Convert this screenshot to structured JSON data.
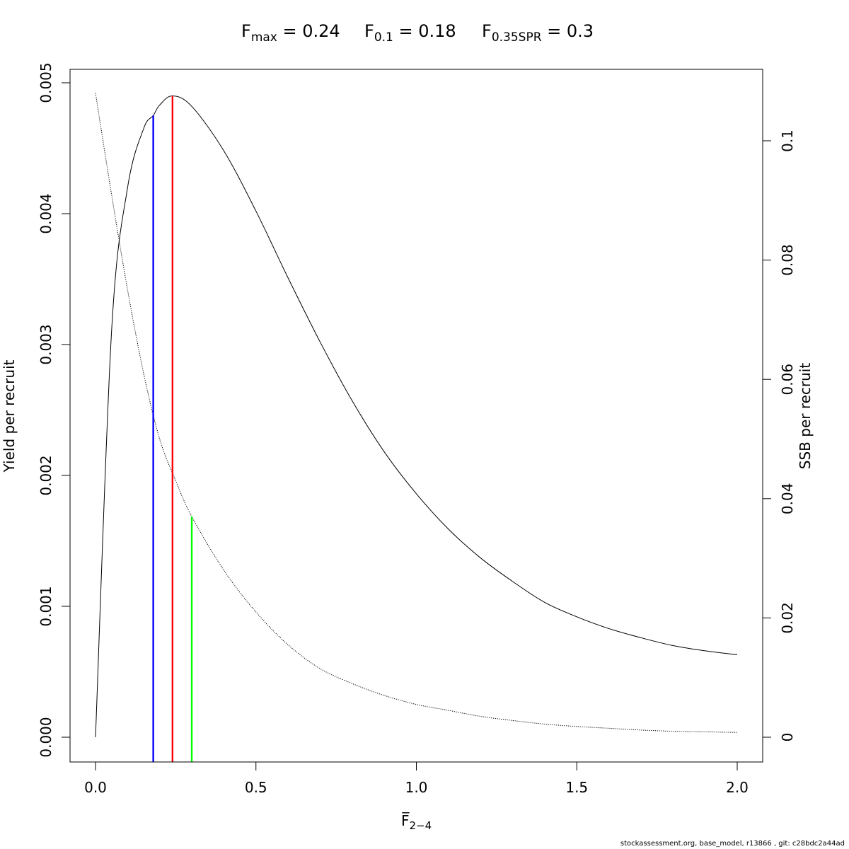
{
  "title": {
    "fmax": {
      "sym": "F",
      "sub": "max",
      "rest": " = 0.24"
    },
    "f01": {
      "sym": "F",
      "sub": "0.1",
      "rest": " = 0.18"
    },
    "fspr": {
      "sym": "F",
      "sub": "0.35SPR",
      "rest": " = 0.3"
    }
  },
  "footer": "stockassessment.org, base_model, r13866 , git: c28bdc2a44ad",
  "chart_data": {
    "type": "line",
    "xlabel": "F̅",
    "xlabel_sub": "2−4",
    "ylabel_left": "Yield per recruit",
    "ylabel_right": "SSB per recruit",
    "xlim": [
      0,
      2
    ],
    "ylim_left": [
      0,
      0.005
    ],
    "ylim_right": [
      0,
      0.11
    ],
    "x_ticks": [
      "0.0",
      "0.5",
      "1.0",
      "1.5",
      "2.0"
    ],
    "y_left_ticks": [
      "0.000",
      "0.001",
      "0.002",
      "0.003",
      "0.004",
      "0.005"
    ],
    "y_right_ticks": [
      "0",
      "0.02",
      "0.04",
      "0.06",
      "0.08",
      "0.1"
    ],
    "series": [
      {
        "axis": "left",
        "style": "solid",
        "x": [
          0,
          0.05,
          0.1,
          0.15,
          0.18,
          0.2,
          0.24,
          0.3,
          0.4,
          0.5,
          0.6,
          0.7,
          0.8,
          0.9,
          1.0,
          1.1,
          1.2,
          1.3,
          1.4,
          1.5,
          1.6,
          1.7,
          1.8,
          1.9,
          2.0
        ],
        "y": [
          0.0,
          0.0031,
          0.0042,
          0.00465,
          0.00475,
          0.00483,
          0.0049,
          0.00482,
          0.00448,
          0.00402,
          0.00351,
          0.00302,
          0.00257,
          0.00218,
          0.00186,
          0.00159,
          0.00137,
          0.00119,
          0.00103,
          0.00092,
          0.00083,
          0.00076,
          0.0007,
          0.00066,
          0.00063
        ]
      },
      {
        "axis": "right",
        "style": "dotted",
        "x": [
          0,
          0.05,
          0.1,
          0.15,
          0.2,
          0.25,
          0.3,
          0.4,
          0.5,
          0.6,
          0.7,
          0.8,
          0.9,
          1.0,
          1.1,
          1.2,
          1.3,
          1.4,
          1.5,
          1.6,
          1.7,
          1.8,
          1.9,
          2.0
        ],
        "y": [
          0.108,
          0.091,
          0.075,
          0.061,
          0.05,
          0.043,
          0.037,
          0.028,
          0.021,
          0.0155,
          0.0115,
          0.009,
          0.007,
          0.0055,
          0.0045,
          0.0035,
          0.0028,
          0.0022,
          0.0018,
          0.0015,
          0.0012,
          0.001,
          0.0009,
          0.0008
        ]
      }
    ],
    "reference_lines": [
      {
        "x": 0.18,
        "axis": "left",
        "y": 0.00475,
        "color": "#0000ff"
      },
      {
        "x": 0.24,
        "axis": "left",
        "y": 0.0049,
        "color": "#ff0000"
      },
      {
        "x": 0.3,
        "axis": "right",
        "y": 0.037,
        "color": "#00ff00"
      }
    ]
  }
}
